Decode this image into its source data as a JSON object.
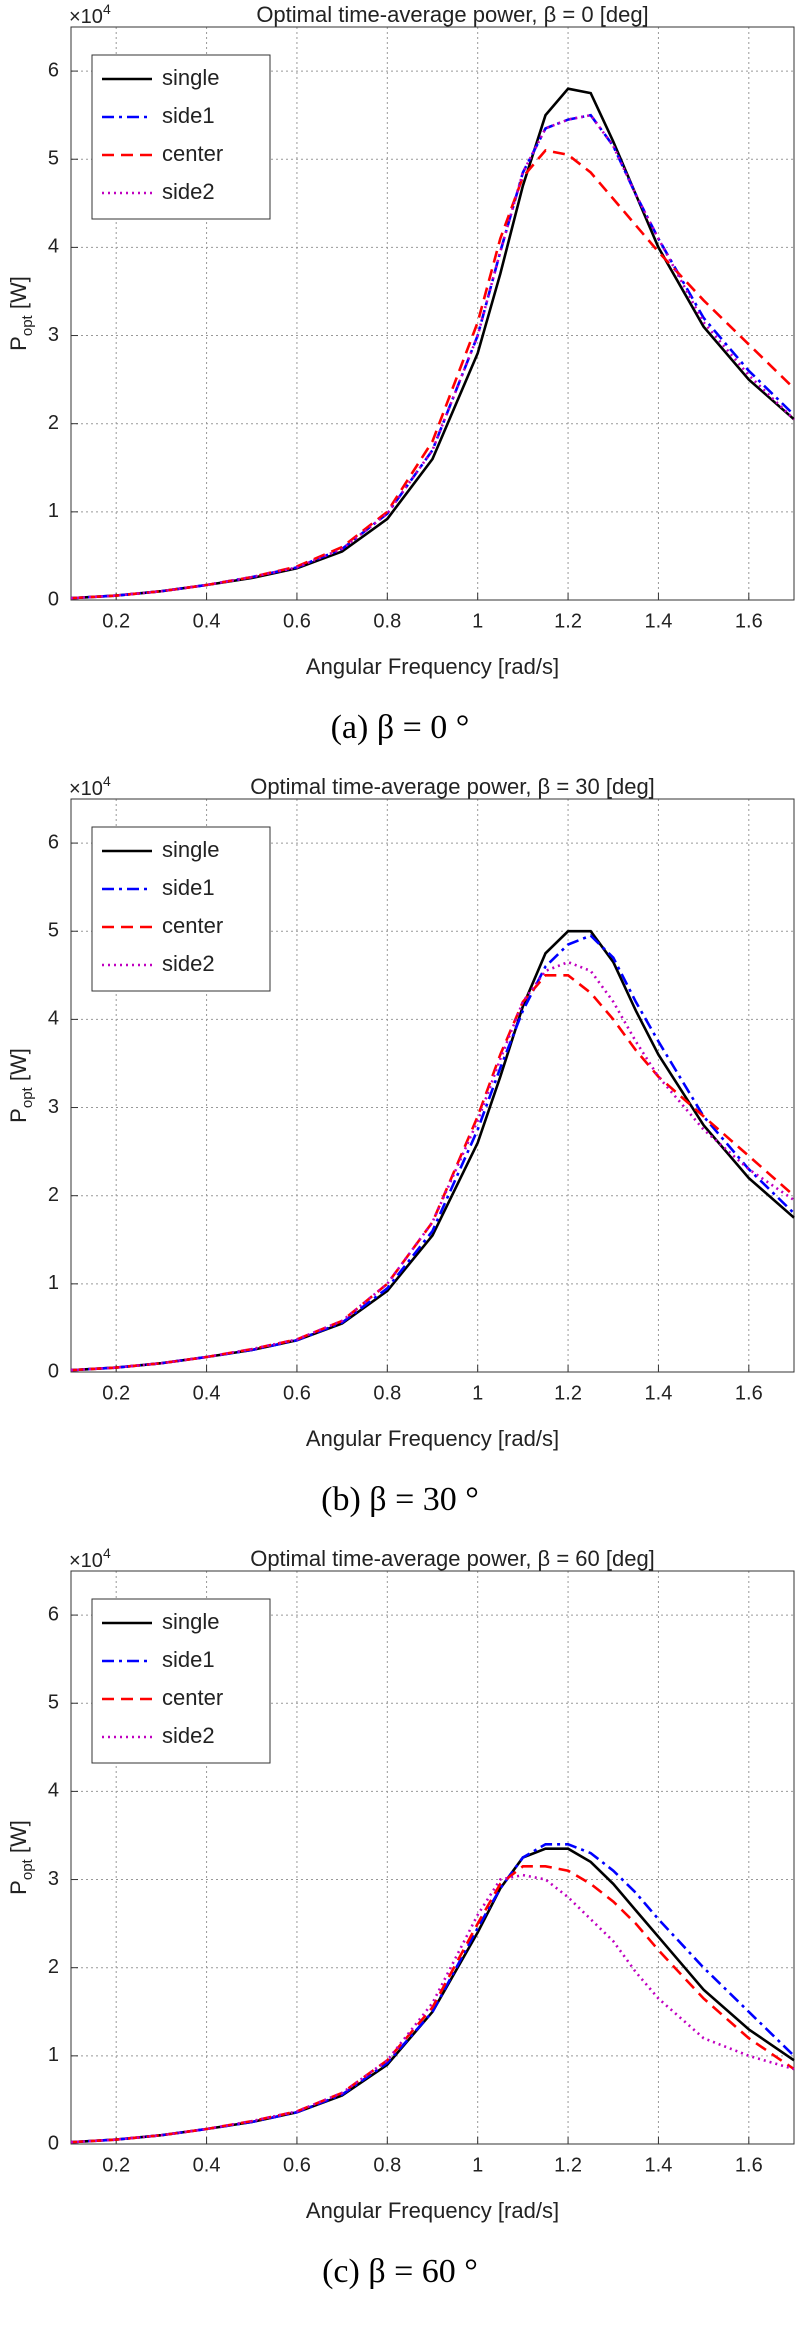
{
  "chart_data": [
    {
      "type": "line",
      "title": "Optimal time-average power,  β = 0 [deg]",
      "xlabel": "Angular Frequency [rad/s]",
      "ylabel": {
        "main": "P",
        "sub": "opt",
        "unit": "[W]"
      },
      "y_multiplier": {
        "base": "×10",
        "exponent": "4"
      },
      "caption": "(a)  β = 0 °",
      "x": [
        0.1,
        0.2,
        0.3,
        0.4,
        0.5,
        0.6,
        0.7,
        0.8,
        0.9,
        1.0,
        1.05,
        1.1,
        1.15,
        1.2,
        1.25,
        1.3,
        1.35,
        1.4,
        1.5,
        1.6,
        1.7
      ],
      "series": [
        {
          "name": "single",
          "color": "#000000",
          "dash": "solid",
          "values": [
            0.02,
            0.05,
            0.1,
            0.17,
            0.25,
            0.36,
            0.55,
            0.92,
            1.6,
            2.8,
            3.7,
            4.7,
            5.5,
            5.8,
            5.75,
            5.2,
            4.6,
            4.0,
            3.1,
            2.5,
            2.05
          ]
        },
        {
          "name": "side1",
          "color": "#0000ff",
          "dash": "dashdot",
          "values": [
            0.02,
            0.05,
            0.1,
            0.17,
            0.26,
            0.37,
            0.58,
            0.98,
            1.7,
            3.0,
            3.95,
            4.85,
            5.35,
            5.45,
            5.5,
            5.15,
            4.6,
            4.1,
            3.2,
            2.6,
            2.1
          ]
        },
        {
          "name": "center",
          "color": "#ff0000",
          "dash": "dashed",
          "values": [
            0.02,
            0.05,
            0.1,
            0.17,
            0.26,
            0.38,
            0.6,
            1.0,
            1.8,
            3.15,
            4.1,
            4.8,
            5.1,
            5.05,
            4.85,
            4.55,
            4.25,
            3.95,
            3.4,
            2.9,
            2.4
          ]
        },
        {
          "name": "side2",
          "color": "#c000c0",
          "dash": "dotted",
          "values": [
            0.02,
            0.05,
            0.1,
            0.17,
            0.26,
            0.37,
            0.58,
            0.98,
            1.7,
            3.0,
            3.95,
            4.85,
            5.35,
            5.45,
            5.5,
            5.15,
            4.6,
            4.1,
            3.15,
            2.55,
            2.05
          ]
        }
      ],
      "xlim": [
        0.1,
        1.7
      ],
      "xticks": [
        0.2,
        0.4,
        0.6,
        0.8,
        1,
        1.2,
        1.4,
        1.6
      ],
      "ylim": [
        0,
        6.5
      ],
      "yticks": [
        0,
        1,
        2,
        3,
        4,
        5,
        6
      ],
      "grid": true,
      "legend": "upper-left"
    },
    {
      "type": "line",
      "title": "Optimal time-average power,  β = 30 [deg]",
      "xlabel": "Angular Frequency [rad/s]",
      "ylabel": {
        "main": "P",
        "sub": "opt",
        "unit": "[W]"
      },
      "y_multiplier": {
        "base": "×10",
        "exponent": "4"
      },
      "caption": "(b)  β = 30 °",
      "x": [
        0.1,
        0.2,
        0.3,
        0.4,
        0.5,
        0.6,
        0.7,
        0.8,
        0.9,
        1.0,
        1.05,
        1.1,
        1.15,
        1.2,
        1.25,
        1.3,
        1.35,
        1.4,
        1.5,
        1.6,
        1.7
      ],
      "series": [
        {
          "name": "single",
          "color": "#000000",
          "dash": "solid",
          "values": [
            0.02,
            0.05,
            0.1,
            0.17,
            0.25,
            0.36,
            0.55,
            0.92,
            1.55,
            2.6,
            3.35,
            4.15,
            4.75,
            5.0,
            5.0,
            4.65,
            4.1,
            3.6,
            2.8,
            2.2,
            1.75
          ]
        },
        {
          "name": "side1",
          "color": "#0000ff",
          "dash": "dashdot",
          "values": [
            0.02,
            0.05,
            0.1,
            0.17,
            0.25,
            0.36,
            0.56,
            0.95,
            1.6,
            2.75,
            3.45,
            4.1,
            4.6,
            4.85,
            4.95,
            4.7,
            4.2,
            3.75,
            2.9,
            2.3,
            1.8
          ]
        },
        {
          "name": "center",
          "color": "#ff0000",
          "dash": "dashed",
          "values": [
            0.02,
            0.05,
            0.1,
            0.17,
            0.26,
            0.37,
            0.58,
            1.0,
            1.7,
            2.9,
            3.6,
            4.2,
            4.5,
            4.5,
            4.3,
            4.0,
            3.65,
            3.35,
            2.9,
            2.45,
            2.0
          ]
        },
        {
          "name": "side2",
          "color": "#c000c0",
          "dash": "dotted",
          "values": [
            0.02,
            0.05,
            0.1,
            0.17,
            0.26,
            0.37,
            0.58,
            1.0,
            1.7,
            2.85,
            3.55,
            4.2,
            4.55,
            4.65,
            4.55,
            4.2,
            3.75,
            3.35,
            2.75,
            2.3,
            1.95
          ]
        }
      ],
      "xlim": [
        0.1,
        1.7
      ],
      "xticks": [
        0.2,
        0.4,
        0.6,
        0.8,
        1,
        1.2,
        1.4,
        1.6
      ],
      "ylim": [
        0,
        6.5
      ],
      "yticks": [
        0,
        1,
        2,
        3,
        4,
        5,
        6
      ],
      "grid": true,
      "legend": "upper-left"
    },
    {
      "type": "line",
      "title": "Optimal time-average power,  β = 60 [deg]",
      "xlabel": "Angular Frequency [rad/s]",
      "ylabel": {
        "main": "P",
        "sub": "opt",
        "unit": "[W]"
      },
      "y_multiplier": {
        "base": "×10",
        "exponent": "4"
      },
      "caption": "(c)  β = 60 °",
      "x": [
        0.1,
        0.2,
        0.3,
        0.4,
        0.5,
        0.6,
        0.7,
        0.8,
        0.9,
        1.0,
        1.05,
        1.1,
        1.15,
        1.2,
        1.25,
        1.3,
        1.35,
        1.4,
        1.5,
        1.6,
        1.7
      ],
      "series": [
        {
          "name": "single",
          "color": "#000000",
          "dash": "solid",
          "values": [
            0.02,
            0.05,
            0.1,
            0.17,
            0.25,
            0.36,
            0.55,
            0.9,
            1.5,
            2.4,
            2.9,
            3.25,
            3.35,
            3.35,
            3.2,
            2.95,
            2.65,
            2.35,
            1.75,
            1.3,
            0.95
          ]
        },
        {
          "name": "side1",
          "color": "#0000ff",
          "dash": "dashdot",
          "values": [
            0.02,
            0.05,
            0.1,
            0.17,
            0.25,
            0.36,
            0.56,
            0.92,
            1.5,
            2.45,
            2.9,
            3.25,
            3.4,
            3.4,
            3.3,
            3.1,
            2.85,
            2.55,
            2.0,
            1.5,
            1.0
          ]
        },
        {
          "name": "center",
          "color": "#ff0000",
          "dash": "dashed",
          "values": [
            0.02,
            0.05,
            0.1,
            0.17,
            0.26,
            0.37,
            0.58,
            0.95,
            1.55,
            2.5,
            2.95,
            3.15,
            3.15,
            3.1,
            2.95,
            2.75,
            2.5,
            2.2,
            1.65,
            1.2,
            0.85
          ]
        },
        {
          "name": "side2",
          "color": "#c000c0",
          "dash": "dotted",
          "values": [
            0.02,
            0.05,
            0.1,
            0.17,
            0.26,
            0.37,
            0.58,
            0.95,
            1.6,
            2.6,
            3.0,
            3.05,
            3.0,
            2.8,
            2.55,
            2.3,
            1.95,
            1.65,
            1.2,
            1.0,
            0.85
          ]
        }
      ],
      "xlim": [
        0.1,
        1.7
      ],
      "xticks": [
        0.2,
        0.4,
        0.6,
        0.8,
        1,
        1.2,
        1.4,
        1.6
      ],
      "ylim": [
        0,
        6.5
      ],
      "yticks": [
        0,
        1,
        2,
        3,
        4,
        5,
        6
      ],
      "grid": true,
      "legend": "upper-left"
    }
  ]
}
